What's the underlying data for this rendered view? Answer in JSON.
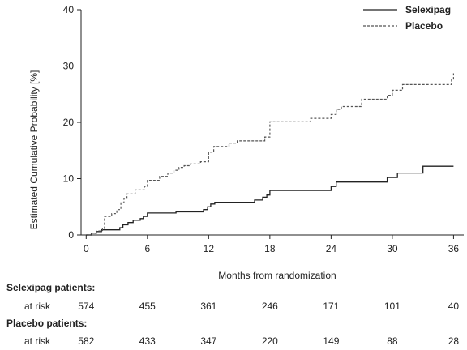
{
  "chart_data": {
    "type": "line",
    "xlabel": "Months from randomization",
    "ylabel": "Estimated Cumulative Probability [%]",
    "x_ticks": [
      0,
      6,
      12,
      18,
      24,
      30,
      36
    ],
    "y_ticks": [
      0,
      10,
      20,
      30,
      40
    ],
    "xlim": [
      -0.5,
      37
    ],
    "ylim": [
      0,
      40
    ],
    "grid": false,
    "legend_position": "top-right",
    "series": [
      {
        "name": "Selexipag",
        "style": "solid",
        "color": "#222222",
        "points": [
          [
            0,
            0
          ],
          [
            0.5,
            0
          ],
          [
            0.5,
            0.3
          ],
          [
            1.0,
            0.3
          ],
          [
            1.0,
            0.6
          ],
          [
            1.5,
            0.6
          ],
          [
            1.5,
            0.9
          ],
          [
            3.3,
            0.9
          ],
          [
            3.3,
            1.3
          ],
          [
            3.6,
            1.3
          ],
          [
            3.6,
            1.8
          ],
          [
            4.1,
            1.8
          ],
          [
            4.1,
            2.2
          ],
          [
            4.6,
            2.2
          ],
          [
            4.6,
            2.6
          ],
          [
            5.3,
            2.6
          ],
          [
            5.3,
            2.9
          ],
          [
            5.6,
            2.9
          ],
          [
            5.6,
            3.3
          ],
          [
            6.0,
            3.3
          ],
          [
            6.0,
            3.9
          ],
          [
            8.8,
            3.9
          ],
          [
            8.8,
            4.1
          ],
          [
            11.5,
            4.1
          ],
          [
            11.5,
            4.5
          ],
          [
            11.9,
            4.5
          ],
          [
            11.9,
            5.0
          ],
          [
            12.2,
            5.0
          ],
          [
            12.2,
            5.5
          ],
          [
            12.6,
            5.5
          ],
          [
            12.6,
            5.8
          ],
          [
            16.5,
            5.8
          ],
          [
            16.5,
            6.2
          ],
          [
            17.3,
            6.2
          ],
          [
            17.3,
            6.7
          ],
          [
            17.7,
            6.7
          ],
          [
            17.7,
            7.1
          ],
          [
            18.0,
            7.1
          ],
          [
            18.0,
            7.9
          ],
          [
            24.0,
            7.9
          ],
          [
            24.0,
            8.6
          ],
          [
            24.5,
            8.6
          ],
          [
            24.5,
            9.4
          ],
          [
            29.5,
            9.4
          ],
          [
            29.5,
            10.2
          ],
          [
            30.5,
            10.2
          ],
          [
            30.5,
            11.0
          ],
          [
            33.0,
            11.0
          ],
          [
            33.0,
            12.2
          ],
          [
            36.0,
            12.2
          ]
        ]
      },
      {
        "name": "Placebo",
        "style": "dashed",
        "color": "#555555",
        "points": [
          [
            0,
            0
          ],
          [
            0.5,
            0
          ],
          [
            0.5,
            0.3
          ],
          [
            1.0,
            0.3
          ],
          [
            1.0,
            0.7
          ],
          [
            1.6,
            0.7
          ],
          [
            1.6,
            1.1
          ],
          [
            1.8,
            1.1
          ],
          [
            1.8,
            3.3
          ],
          [
            2.5,
            3.3
          ],
          [
            2.5,
            3.8
          ],
          [
            3.0,
            3.8
          ],
          [
            3.0,
            4.5
          ],
          [
            3.4,
            4.5
          ],
          [
            3.4,
            5.7
          ],
          [
            3.7,
            5.7
          ],
          [
            3.7,
            6.5
          ],
          [
            4.0,
            6.5
          ],
          [
            4.0,
            7.3
          ],
          [
            4.8,
            7.3
          ],
          [
            4.8,
            8.0
          ],
          [
            5.7,
            8.0
          ],
          [
            5.7,
            8.6
          ],
          [
            6.0,
            8.6
          ],
          [
            6.0,
            9.7
          ],
          [
            7.2,
            9.7
          ],
          [
            7.2,
            10.4
          ],
          [
            8.0,
            10.4
          ],
          [
            8.0,
            11.0
          ],
          [
            8.6,
            11.0
          ],
          [
            8.6,
            11.5
          ],
          [
            9.1,
            11.5
          ],
          [
            9.1,
            12.0
          ],
          [
            9.6,
            12.0
          ],
          [
            9.6,
            12.3
          ],
          [
            10.2,
            12.3
          ],
          [
            10.2,
            12.6
          ],
          [
            11.2,
            12.6
          ],
          [
            11.2,
            13.0
          ],
          [
            12.0,
            13.0
          ],
          [
            12.0,
            14.7
          ],
          [
            12.5,
            14.7
          ],
          [
            12.5,
            15.7
          ],
          [
            14.0,
            15.7
          ],
          [
            14.0,
            16.3
          ],
          [
            14.8,
            16.3
          ],
          [
            14.8,
            16.7
          ],
          [
            17.5,
            16.7
          ],
          [
            17.5,
            17.4
          ],
          [
            18.0,
            17.4
          ],
          [
            18.0,
            20.1
          ],
          [
            22.0,
            20.1
          ],
          [
            22.0,
            20.7
          ],
          [
            24.0,
            20.7
          ],
          [
            24.0,
            21.4
          ],
          [
            24.5,
            21.4
          ],
          [
            24.5,
            22.3
          ],
          [
            25.0,
            22.3
          ],
          [
            25.0,
            22.8
          ],
          [
            27.0,
            22.8
          ],
          [
            27.0,
            24.1
          ],
          [
            29.5,
            24.1
          ],
          [
            29.5,
            24.8
          ],
          [
            30.0,
            24.8
          ],
          [
            30.0,
            25.7
          ],
          [
            31.0,
            25.7
          ],
          [
            31.0,
            26.7
          ],
          [
            35.8,
            26.7
          ],
          [
            35.8,
            27.7
          ],
          [
            36.0,
            27.7
          ],
          [
            36.0,
            28.7
          ]
        ]
      }
    ]
  },
  "risk_table": {
    "times": [
      0,
      6,
      12,
      18,
      24,
      30,
      36
    ],
    "groups": [
      {
        "title": "Selexipag patients:",
        "row_label": "at risk",
        "values": [
          "574",
          "455",
          "361",
          "246",
          "171",
          "101",
          "40"
        ]
      },
      {
        "title": "Placebo patients:",
        "row_label": "at risk",
        "values": [
          "582",
          "433",
          "347",
          "220",
          "149",
          "88",
          "28"
        ]
      }
    ]
  }
}
